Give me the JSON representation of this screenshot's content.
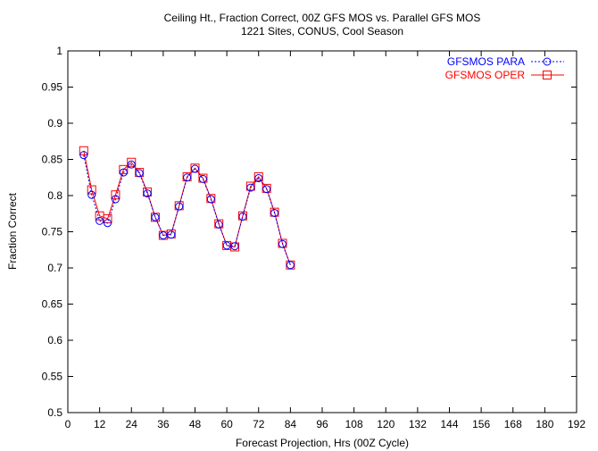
{
  "chart_data": {
    "type": "line",
    "title": "Ceiling Ht., Fraction Correct, 00Z GFS MOS vs. Parallel GFS MOS",
    "subtitle": "1221 Sites, CONUS, Cool Season",
    "xlabel": "Forecast Projection, Hrs (00Z Cycle)",
    "ylabel": "Fraction Correct",
    "xlim": [
      0,
      192
    ],
    "ylim": [
      0.5,
      1.0
    ],
    "x_ticks": [
      "0",
      "12",
      "24",
      "36",
      "48",
      "60",
      "72",
      "84",
      "96",
      "108",
      "120",
      "132",
      "144",
      "156",
      "168",
      "180",
      "192"
    ],
    "y_ticks": [
      "0.5",
      "0.55",
      "0.6",
      "0.65",
      "0.7",
      "0.75",
      "0.8",
      "0.85",
      "0.9",
      "0.95",
      "1"
    ],
    "grid": false,
    "legend_position": "top-right",
    "x": [
      6,
      9,
      12,
      15,
      18,
      21,
      24,
      27,
      30,
      33,
      36,
      39,
      42,
      45,
      48,
      51,
      54,
      57,
      60,
      63,
      66,
      69,
      72,
      75,
      78,
      81,
      84
    ],
    "series": [
      {
        "name": "GFSMOS PARA",
        "color": "#0000ff",
        "line_style": "dotted",
        "marker": "circle",
        "values": [
          0.856,
          0.801,
          0.765,
          0.762,
          0.795,
          0.832,
          0.843,
          0.831,
          0.803,
          0.77,
          0.745,
          0.746,
          0.785,
          0.825,
          0.837,
          0.823,
          0.795,
          0.76,
          0.731,
          0.73,
          0.771,
          0.811,
          0.824,
          0.809,
          0.776,
          0.733,
          0.704
        ]
      },
      {
        "name": "GFSMOS OPER",
        "color": "#ff0000",
        "line_style": "solid",
        "marker": "square",
        "values": [
          0.862,
          0.808,
          0.772,
          0.768,
          0.801,
          0.836,
          0.846,
          0.832,
          0.805,
          0.77,
          0.745,
          0.747,
          0.786,
          0.826,
          0.838,
          0.824,
          0.796,
          0.761,
          0.731,
          0.729,
          0.772,
          0.813,
          0.826,
          0.81,
          0.777,
          0.734,
          0.704
        ]
      }
    ]
  }
}
